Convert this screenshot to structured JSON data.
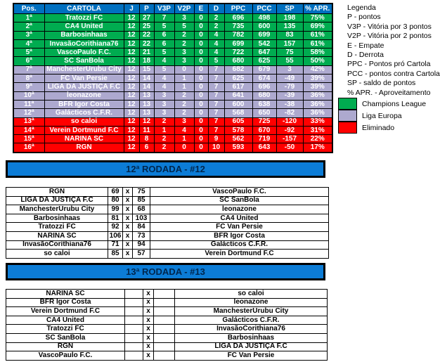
{
  "colors": {
    "header_blue": "#0070C0",
    "bar_blue": "#0C7CD6",
    "bar_text": "#00264D",
    "champions_green": "#00AC50",
    "europa_lavender": "#ADA9CF",
    "eliminated_red": "#FF0000",
    "win_green": "#00A050",
    "loss_red": "#DE1212"
  },
  "standings": {
    "headers": [
      "Pos.",
      "CARTOLA",
      "J",
      "P",
      "V3P",
      "V2P",
      "E",
      "D",
      "PPC",
      "PCC",
      "SP",
      "% APR."
    ],
    "rows": [
      {
        "zone": "champions",
        "cells": [
          "1ª",
          "Tratozzi FC",
          "12",
          "27",
          "7",
          "3",
          "0",
          "2",
          "696",
          "498",
          "198",
          "75%"
        ]
      },
      {
        "zone": "champions",
        "cells": [
          "2ª",
          "CA4 United",
          "12",
          "25",
          "5",
          "5",
          "0",
          "2",
          "735",
          "600",
          "135",
          "69%"
        ]
      },
      {
        "zone": "champions",
        "cells": [
          "3ª",
          "Barbosinhaas",
          "12",
          "22",
          "6",
          "2",
          "0",
          "4",
          "782",
          "699",
          "83",
          "61%"
        ]
      },
      {
        "zone": "champions",
        "cells": [
          "4ª",
          "InvasãoCorithiana76",
          "12",
          "22",
          "6",
          "2",
          "0",
          "4",
          "699",
          "542",
          "157",
          "61%"
        ]
      },
      {
        "zone": "champions",
        "cells": [
          "5ª",
          "VascoPaulo F.C.",
          "12",
          "21",
          "5",
          "3",
          "0",
          "4",
          "722",
          "647",
          "75",
          "58%"
        ]
      },
      {
        "zone": "champions",
        "cells": [
          "6ª",
          "SC SanBola",
          "12",
          "18",
          "4",
          "3",
          "0",
          "5",
          "680",
          "625",
          "55",
          "50%"
        ]
      },
      {
        "zone": "europa",
        "cells": [
          "7ª",
          "ManchesterUrubu City",
          "12",
          "15",
          "5",
          "0",
          "0",
          "7",
          "682",
          "679",
          "3",
          "42%"
        ]
      },
      {
        "zone": "europa",
        "cells": [
          "8ª",
          "FC Van Persie",
          "12",
          "14",
          "4",
          "1",
          "0",
          "7",
          "625",
          "674",
          "-49",
          "39%"
        ]
      },
      {
        "zone": "europa",
        "cells": [
          "9ª",
          "LIGA DA JUSTIÇA F.C",
          "12",
          "14",
          "4",
          "1",
          "0",
          "7",
          "617",
          "696",
          "-79",
          "39%"
        ]
      },
      {
        "zone": "europa",
        "cells": [
          "10ª",
          "leonazone",
          "12",
          "13",
          "3",
          "2",
          "0",
          "7",
          "641",
          "680",
          "-39",
          "36%"
        ]
      },
      {
        "zone": "europa",
        "cells": [
          "11ª",
          "BFR Igor Costa",
          "12",
          "13",
          "3",
          "2",
          "0",
          "7",
          "600",
          "638",
          "-38",
          "36%"
        ]
      },
      {
        "zone": "europa",
        "cells": [
          "12ª",
          "Galácticos C.F.R.",
          "12",
          "13",
          "3",
          "2",
          "0",
          "7",
          "568",
          "650",
          "-82",
          "36%"
        ]
      },
      {
        "zone": "eliminated",
        "cells": [
          "13ª",
          "so caloi",
          "12",
          "12",
          "2",
          "3",
          "0",
          "7",
          "605",
          "725",
          "-120",
          "33%"
        ]
      },
      {
        "zone": "eliminated",
        "cells": [
          "14ª",
          "Verein Dortmund F.C",
          "12",
          "11",
          "1",
          "4",
          "0",
          "7",
          "578",
          "670",
          "-92",
          "31%"
        ]
      },
      {
        "zone": "eliminated",
        "cells": [
          "15ª",
          "NARINA SC",
          "12",
          "8",
          "2",
          "1",
          "0",
          "9",
          "562",
          "719",
          "-157",
          "22%"
        ]
      },
      {
        "zone": "eliminated",
        "cells": [
          "16ª",
          "RGN",
          "12",
          "6",
          "2",
          "0",
          "0",
          "10",
          "593",
          "643",
          "-50",
          "17%"
        ]
      }
    ]
  },
  "legend": {
    "title": "Legenda",
    "items": [
      "P - pontos",
      "V3P - Vitória por 3 pontos",
      "V2P - Vitória por 2 pontos",
      "E - Empate",
      "D - Derrota",
      "PPC - Pontos pró Cartola",
      "PCC - pontos contra Cartola",
      "SP - saldo de pontos",
      "% APR. - Aproveitamento"
    ],
    "zones": [
      {
        "label": "Champions League",
        "color": "#00AC50"
      },
      {
        "label": "Liga Europa",
        "color": "#ADA9CF"
      },
      {
        "label": "Eliminado",
        "color": "#FF0000"
      }
    ]
  },
  "round12": {
    "title": "12ª RODADA - #12",
    "separator": "x",
    "matches": [
      {
        "home": "RGN",
        "home_score": "69",
        "away_score": "75",
        "away": "VascoPaulo F.C."
      },
      {
        "home": "LIGA DA JUSTIÇA F.C",
        "home_score": "80",
        "away_score": "85",
        "away": "SC SanBola"
      },
      {
        "home": "ManchesterUrubu City",
        "home_score": "99",
        "away_score": "68",
        "away": "leonazone"
      },
      {
        "home": "Barbosinhaas",
        "home_score": "81",
        "away_score": "103",
        "away": "CA4 United"
      },
      {
        "home": "Tratozzi FC",
        "home_score": "92",
        "away_score": "84",
        "away": "FC Van Persie"
      },
      {
        "home": "NARINA SC",
        "home_score": "106",
        "away_score": "73",
        "away": "BFR Igor Costa"
      },
      {
        "home": "InvasãoCorithiana76",
        "home_score": "71",
        "away_score": "94",
        "away": "Galácticos C.F.R."
      },
      {
        "home": "so caloi",
        "home_score": "85",
        "away_score": "57",
        "away": "Verein Dortmund F.C"
      }
    ]
  },
  "round13": {
    "title": "13ª RODADA - #13",
    "separator": "x",
    "matches": [
      {
        "home": "NARINA SC",
        "home_score": "",
        "away_score": "",
        "away": "so caloi"
      },
      {
        "home": "BFR Igor Costa",
        "home_score": "",
        "away_score": "",
        "away": "leonazone"
      },
      {
        "home": "Verein Dortmund F.C",
        "home_score": "",
        "away_score": "",
        "away": "ManchesterUrubu City"
      },
      {
        "home": "CA4 United",
        "home_score": "",
        "away_score": "",
        "away": "Galácticos C.F.R."
      },
      {
        "home": "Tratozzi FC",
        "home_score": "",
        "away_score": "",
        "away": "InvasãoCorithiana76"
      },
      {
        "home": "SC SanBola",
        "home_score": "",
        "away_score": "",
        "away": "Barbosinhaas"
      },
      {
        "home": "RGN",
        "home_score": "",
        "away_score": "",
        "away": "LIGA DA JUSTIÇA F.C"
      },
      {
        "home": "VascoPaulo F.C.",
        "home_score": "",
        "away_score": "",
        "away": "FC Van Persie"
      }
    ]
  }
}
